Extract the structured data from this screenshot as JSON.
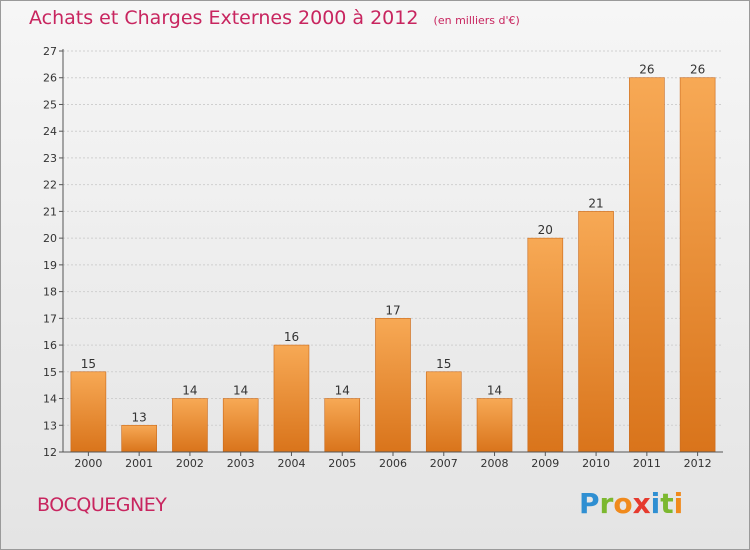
{
  "header": {
    "title": "Achats et Charges Externes 2000 à 2012",
    "unit": "(en milliers d'€)"
  },
  "commune": "BOCQUEGNEY",
  "brand": {
    "name": "Proxiti",
    "letters": [
      {
        "ch": "P",
        "color": "#2f8fd2"
      },
      {
        "ch": "r",
        "color": "#7cb82f"
      },
      {
        "ch": "o",
        "color": "#f08a1c"
      },
      {
        "ch": "x",
        "color": "#e63a2e"
      },
      {
        "ch": "i",
        "color": "#2f8fd2"
      },
      {
        "ch": "t",
        "color": "#7cb82f"
      },
      {
        "ch": "i",
        "color": "#f08a1c"
      }
    ]
  },
  "colors": {
    "title": "#c8255f",
    "bar_light": "#f7a955",
    "bar_dark": "#d9741b",
    "axis": "#555555",
    "grid": "#cfcfcf"
  },
  "chart_data": {
    "type": "bar",
    "title": "Achats et Charges Externes 2000 à 2012",
    "subtitle": "(en milliers d'€)",
    "xlabel": "",
    "ylabel": "",
    "ylim": [
      12,
      27
    ],
    "yticks": [
      12,
      13,
      14,
      15,
      16,
      17,
      18,
      19,
      20,
      21,
      22,
      23,
      24,
      25,
      26,
      27
    ],
    "grid": true,
    "categories": [
      "2000",
      "2001",
      "2002",
      "2003",
      "2004",
      "2005",
      "2006",
      "2007",
      "2008",
      "2009",
      "2010",
      "2011",
      "2012"
    ],
    "values": [
      15,
      13,
      14,
      14,
      16,
      14,
      17,
      15,
      14,
      20,
      21,
      26,
      26
    ]
  }
}
